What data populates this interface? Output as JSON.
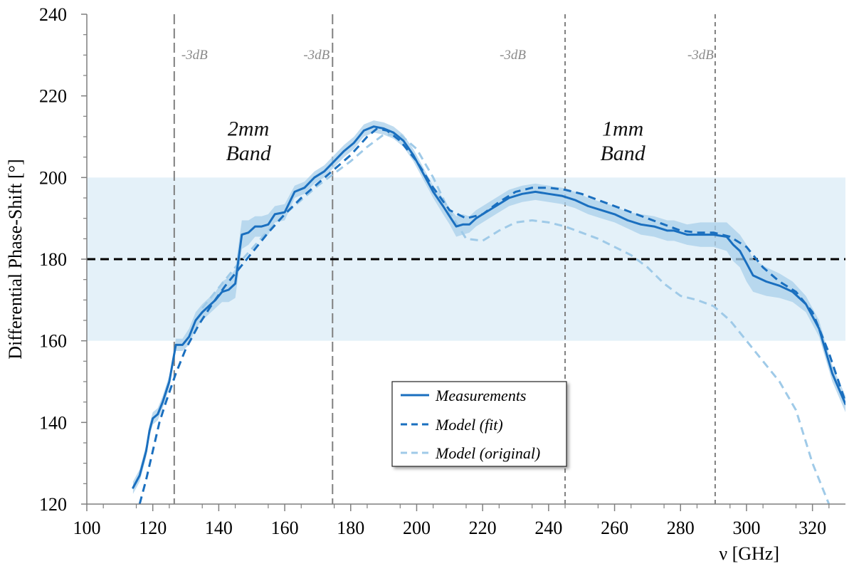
{
  "chart_data": {
    "type": "line",
    "xlabel": "ν [GHz]",
    "ylabel": "Differential Phase-Shift [°]",
    "xlim": [
      100,
      330
    ],
    "ylim": [
      120,
      240
    ],
    "xticks": [
      100,
      120,
      140,
      160,
      180,
      200,
      220,
      240,
      260,
      280,
      300,
      320
    ],
    "yticks": [
      120,
      140,
      160,
      180,
      200,
      220,
      240
    ],
    "target_band": [
      160,
      200
    ],
    "reference_line": 180,
    "cutoff_lines": [
      126.5,
      174.5,
      245,
      290.5
    ],
    "cutoff_label": "-3dB",
    "band_labels": [
      {
        "lines": [
          "2mm",
          "Band"
        ],
        "x": 149,
        "y": [
          212,
          206
        ]
      },
      {
        "lines": [
          "1mm",
          "Band"
        ],
        "x": 262.5,
        "y": [
          212,
          206
        ]
      }
    ],
    "legend": {
      "position": "center-bottom"
    },
    "series": [
      {
        "name": "Measurements",
        "style": "solid",
        "color": "#1a6fbf",
        "x": [
          114,
          116,
          118,
          119,
          120,
          121.5,
          123,
          125,
          127,
          129,
          131,
          133,
          135,
          137,
          139,
          141,
          143,
          145,
          147,
          149,
          151,
          153,
          155,
          157,
          160,
          163,
          166,
          169,
          172,
          175,
          178,
          181,
          184,
          187,
          190,
          193,
          196,
          199,
          202,
          205,
          208,
          210,
          212,
          214,
          216,
          218,
          220,
          224,
          228,
          232,
          236,
          240,
          244,
          248,
          252,
          256,
          260,
          264,
          268,
          272,
          276,
          278,
          282,
          286,
          290,
          294,
          296,
          298,
          300,
          302,
          306,
          310,
          314,
          318,
          322,
          326,
          330
        ],
        "y": [
          124,
          127,
          133,
          138,
          141,
          142,
          145,
          150,
          159,
          159,
          161,
          165,
          167,
          168.5,
          170,
          172,
          172.5,
          174,
          186,
          186.5,
          188,
          188,
          188.5,
          191,
          191.5,
          196.5,
          197.5,
          200,
          201.5,
          204,
          206.5,
          208.5,
          211.5,
          212.5,
          212,
          211,
          209,
          205.5,
          201,
          196.5,
          193,
          190.5,
          188,
          188.5,
          188.5,
          190,
          191,
          193,
          195,
          196,
          196.5,
          196,
          195.5,
          194.5,
          193,
          192,
          191,
          189.5,
          188.5,
          188,
          187,
          187,
          186,
          186,
          186,
          185.5,
          183.5,
          182,
          179,
          176,
          174.5,
          173.5,
          172,
          169,
          163,
          152,
          144.5
        ],
        "err": [
          1.5,
          1.5,
          1.5,
          1.5,
          1.5,
          1.5,
          1.5,
          1.5,
          1.5,
          1.5,
          2,
          2,
          2,
          2,
          2,
          2.5,
          3,
          3.5,
          3.5,
          3,
          2.5,
          2.5,
          2.5,
          2,
          2,
          1.5,
          1.5,
          1.5,
          1.5,
          1.5,
          1.5,
          1.5,
          1.5,
          1.5,
          1.5,
          1.5,
          1.5,
          1.5,
          1.5,
          1.5,
          2,
          2,
          2.5,
          2.5,
          2,
          2,
          2,
          2,
          2,
          2,
          2,
          2,
          2,
          2,
          2,
          2,
          2,
          2,
          2.5,
          2.5,
          2.5,
          2.5,
          2.5,
          3,
          3,
          3.5,
          4,
          4,
          4.5,
          4,
          3.5,
          3,
          2.5,
          2,
          2,
          2,
          2
        ]
      },
      {
        "name": "Model (fit)",
        "style": "dashed",
        "color": "#1a6fbf",
        "x": [
          116,
          118,
          120,
          122,
          124,
          127,
          130,
          134,
          138,
          142,
          146,
          150,
          155,
          160,
          165,
          170,
          175,
          180,
          185,
          188,
          191,
          195,
          200,
          205,
          210,
          215,
          220,
          225,
          230,
          235,
          240,
          245,
          250,
          255,
          260,
          265,
          270,
          275,
          280,
          285,
          290,
          295,
          300,
          305,
          310,
          315,
          320,
          325,
          330
        ],
        "y": [
          120,
          126,
          133,
          140,
          145,
          152,
          158,
          164,
          169,
          173.5,
          177.5,
          181.5,
          186.5,
          191,
          195,
          198.5,
          202,
          205.5,
          210,
          212,
          211.5,
          209,
          204,
          197.5,
          192,
          190,
          191,
          194,
          196.5,
          197.5,
          197.5,
          197,
          196,
          194.5,
          193,
          191.5,
          190,
          188.5,
          187,
          186.5,
          186.5,
          185.5,
          183,
          178,
          174.5,
          172,
          167,
          157,
          145
        ]
      },
      {
        "name": "Model (original)",
        "style": "dashed",
        "color": "#9fcae8",
        "x": [
          135,
          140,
          145,
          150,
          155,
          160,
          165,
          170,
          175,
          180,
          185,
          190,
          195,
          200,
          205,
          210,
          215,
          220,
          225,
          230,
          235,
          240,
          245,
          250,
          255,
          260,
          265,
          270,
          275,
          280,
          285,
          290,
          295,
          300,
          305,
          310,
          315,
          320,
          325
        ],
        "y": [
          168,
          173,
          178,
          182.5,
          187,
          191,
          194.5,
          198,
          201,
          204,
          207.5,
          210.5,
          210.5,
          207,
          200,
          191.5,
          185,
          184.5,
          187,
          189,
          189.5,
          189,
          188,
          186.5,
          185,
          183,
          181,
          178,
          174,
          171,
          170,
          168.5,
          165,
          160,
          155,
          150,
          143,
          130,
          120
        ]
      }
    ]
  }
}
